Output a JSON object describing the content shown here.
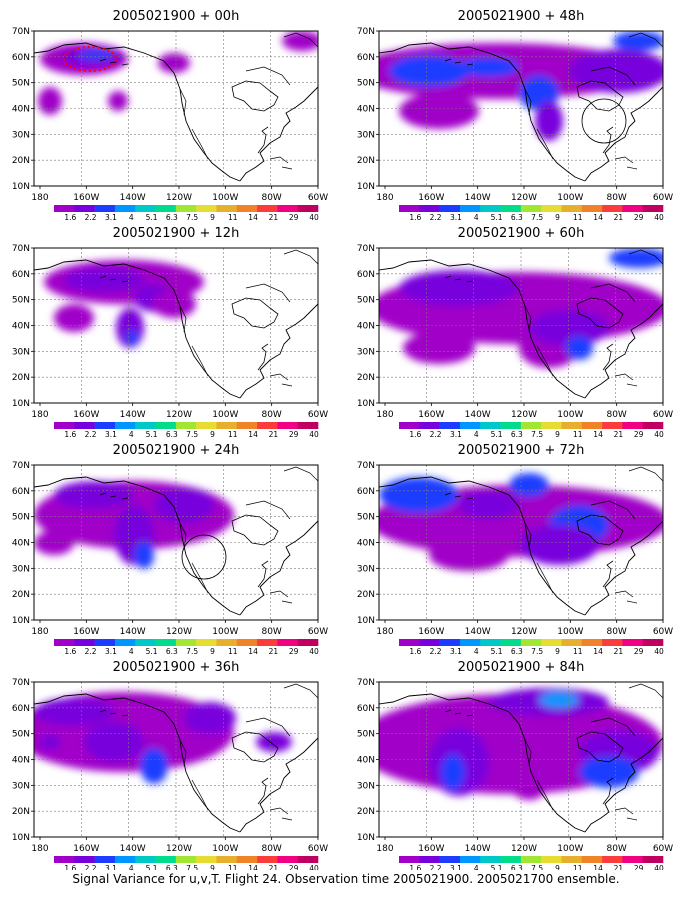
{
  "caption": "Signal Variance for u,v,T. Flight 24. Observation time 2005021900. 2005021700 ensemble.",
  "lon_ticks": [
    "180",
    "160W",
    "140W",
    "120W",
    "100W",
    "80W",
    "60W"
  ],
  "lat_ticks": [
    "10N",
    "20N",
    "30N",
    "40N",
    "50N",
    "60N",
    "70N"
  ],
  "colorbar": {
    "labels": [
      "1.6",
      "2.2",
      "3.1",
      "4",
      "5.1",
      "6.3",
      "7.5",
      "9",
      "11",
      "14",
      "21",
      "29",
      "40"
    ],
    "colors": [
      "#a000c8",
      "#7800dc",
      "#1e3cff",
      "#0096ff",
      "#00c8c8",
      "#00dc8c",
      "#a0e632",
      "#e6dc32",
      "#e6af2d",
      "#f08228",
      "#fa3c3c",
      "#f00082",
      "#c00060"
    ]
  },
  "panels": [
    {
      "title": "2005021900 + 00h"
    },
    {
      "title": "2005021900 + 48h"
    },
    {
      "title": "2005021900 + 12h"
    },
    {
      "title": "2005021900 + 60h"
    },
    {
      "title": "2005021900 + 24h"
    },
    {
      "title": "2005021900 + 72h"
    },
    {
      "title": "2005021900 + 36h"
    },
    {
      "title": "2005021900 + 84h"
    }
  ]
}
